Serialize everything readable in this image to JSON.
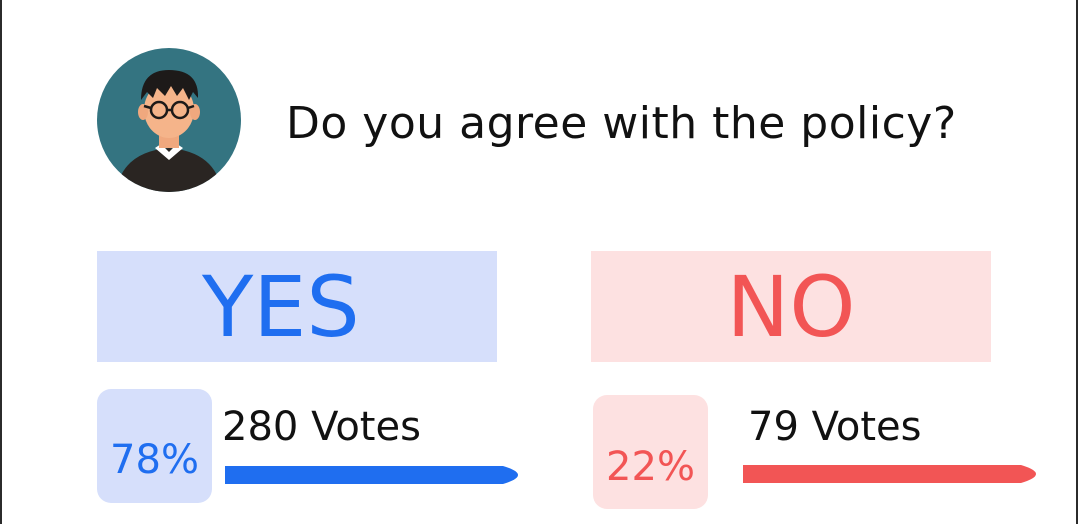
{
  "poll": {
    "question": "Do you agree with the policy?",
    "options": [
      {
        "label": "YES",
        "percent_label": "78%",
        "votes_label": "280 Votes",
        "share": 0.78,
        "color": "#1f6ef0",
        "bg": "#d6dffb"
      },
      {
        "label": "NO",
        "percent_label": "22%",
        "votes_label": "79 Votes",
        "share": 0.22,
        "color": "#f25555",
        "bg": "#fde1e1"
      }
    ]
  },
  "icons": {
    "avatar": "user-avatar-icon"
  }
}
